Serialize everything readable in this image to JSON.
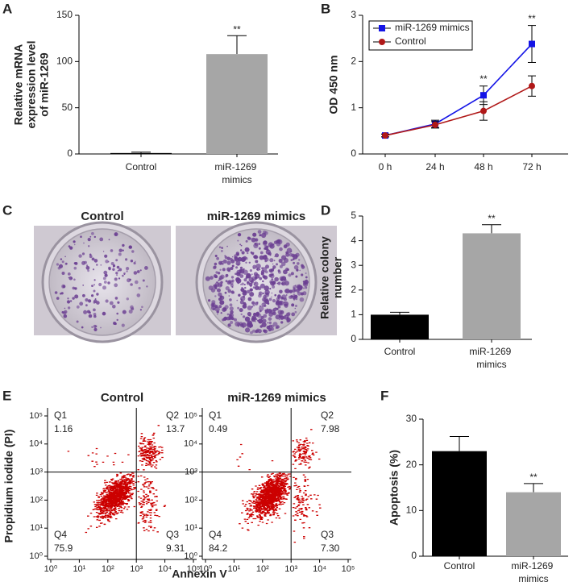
{
  "chart_data": [
    {
      "panel": "A",
      "type": "bar",
      "ylabel": [
        "Relative mRNA",
        "expression level",
        "of miR-1269"
      ],
      "categories": [
        "Control",
        "miR-1269 mimics"
      ],
      "values": [
        1,
        108
      ],
      "errors": [
        1,
        20
      ],
      "colors": [
        "#000000",
        "#a6a6a6"
      ],
      "error_color": "#000000",
      "significance": [
        null,
        "**"
      ],
      "ylim": [
        0,
        150
      ],
      "yticks": [
        0,
        50,
        100,
        150
      ]
    },
    {
      "panel": "B",
      "type": "line",
      "ylabel": [
        "OD 450 nm"
      ],
      "categories": [
        "0 h",
        "24 h",
        "48 h",
        "72 h"
      ],
      "series": [
        {
          "name": "miR-1269 mimics",
          "color": "#1414e6",
          "marker": "square",
          "values": [
            0.4,
            0.65,
            1.27,
            2.38
          ],
          "errors": [
            0.03,
            0.08,
            0.2,
            0.4
          ]
        },
        {
          "name": "Control",
          "color": "#b01818",
          "marker": "circle",
          "values": [
            0.4,
            0.63,
            0.93,
            1.47
          ],
          "errors": [
            0.03,
            0.07,
            0.2,
            0.22
          ]
        }
      ],
      "significance": [
        null,
        null,
        "**",
        "**"
      ],
      "legend": "upper left",
      "ylim": [
        0,
        3
      ],
      "yticks": [
        0,
        1,
        2,
        3
      ]
    },
    {
      "panel": "C",
      "type": "image",
      "titles": [
        "Control",
        "miR-1269 mimics"
      ]
    },
    {
      "panel": "D",
      "type": "bar",
      "ylabel": [
        "Relative colony",
        "number"
      ],
      "categories": [
        "Control",
        "miR-1269 mimics"
      ],
      "values": [
        1.0,
        4.3
      ],
      "errors": [
        0.1,
        0.35
      ],
      "colors": [
        "#000000",
        "#a6a6a6"
      ],
      "error_color": "#000000",
      "significance": [
        null,
        "**"
      ],
      "ylim": [
        0,
        5
      ],
      "yticks": [
        0,
        1,
        2,
        3,
        4,
        5
      ]
    },
    {
      "panel": "E",
      "type": "flow-cytometry",
      "xlabel": "Annexin V",
      "ylabel": [
        "Propidium iodide (PI)"
      ],
      "log": true,
      "color": "#cc0000",
      "quadrant_names": [
        "Q1",
        "Q2",
        "Q3",
        "Q4"
      ],
      "gate": {
        "x": 1000,
        "y": 1000
      },
      "xlim": [
        1,
        100000
      ],
      "ylim": [
        1,
        100000
      ],
      "xticks": [
        {
          "value": 1,
          "label": "10⁰"
        },
        {
          "value": 10,
          "label": "10¹"
        },
        {
          "value": 100,
          "label": "10²"
        },
        {
          "value": 1000,
          "label": "10³"
        },
        {
          "value": 10000,
          "label": "10⁴"
        },
        {
          "value": 100000,
          "label": "10⁵"
        }
      ],
      "yticks": [
        {
          "value": 1,
          "label": "10⁰"
        },
        {
          "value": 10,
          "label": "10¹"
        },
        {
          "value": 100,
          "label": "10²"
        },
        {
          "value": 1000,
          "label": "10³"
        },
        {
          "value": 10000,
          "label": "10⁴"
        },
        {
          "value": 100000,
          "label": "10⁵"
        }
      ],
      "plots": [
        {
          "title": "Control",
          "values": [
            1.16,
            13.7,
            9.31,
            75.9
          ]
        },
        {
          "title": "miR-1269 mimics",
          "values": [
            0.49,
            7.98,
            7.3,
            84.2
          ],
          "value_labels": [
            "0.49",
            "7.98",
            "7.30",
            "84.2"
          ]
        }
      ]
    },
    {
      "panel": "F",
      "type": "bar",
      "ylabel": [
        "Apoptosis (%)"
      ],
      "categories": [
        "Control",
        "miR-1269 mimics"
      ],
      "values": [
        23,
        14
      ],
      "errors": [
        3.2,
        1.9
      ],
      "colors": [
        "#000000",
        "#a6a6a6"
      ],
      "error_color": "#000000",
      "significance": [
        null,
        "**"
      ],
      "ylim": [
        0,
        30
      ],
      "yticks": [
        0,
        10,
        20,
        30
      ]
    }
  ]
}
